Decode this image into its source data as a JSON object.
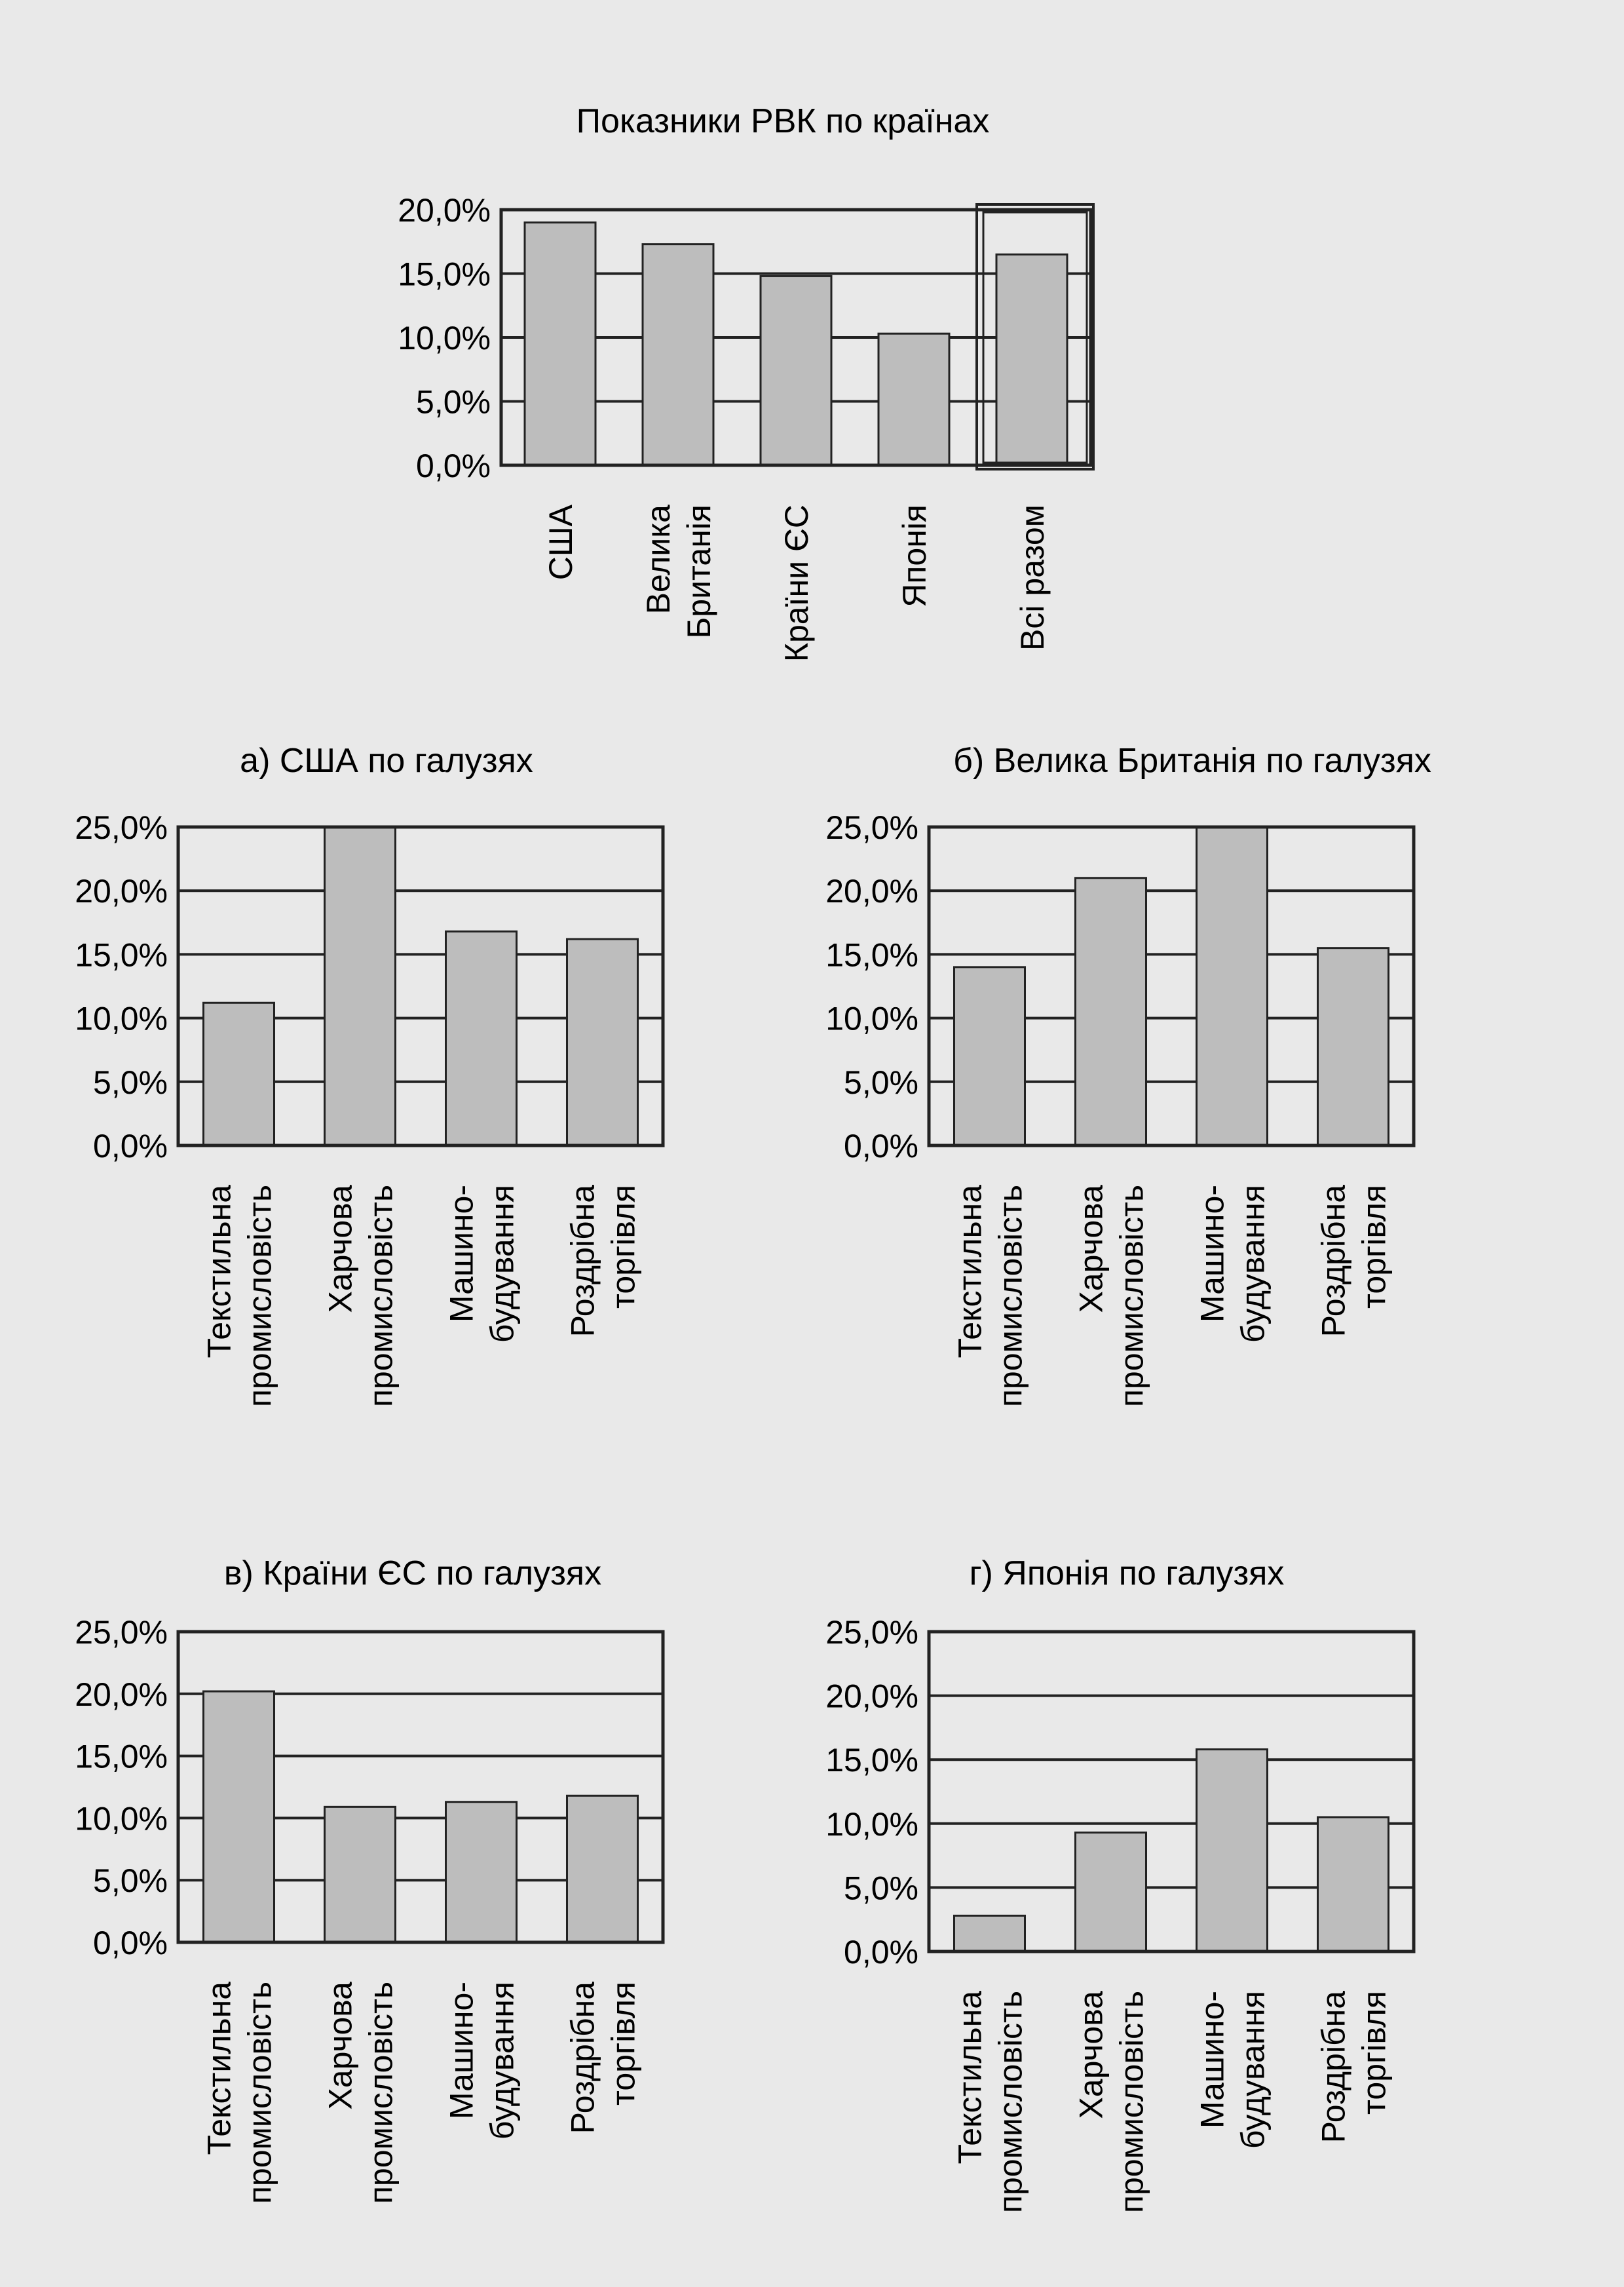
{
  "chart_data": [
    {
      "type": "bar",
      "title": "Показники РВК по країнах",
      "categories": [
        [
          "США"
        ],
        [
          "Велика",
          "Британія"
        ],
        [
          "Країни ЄС"
        ],
        [
          "Японія"
        ],
        [
          "Всі разом"
        ]
      ],
      "values": [
        19.0,
        17.3,
        14.8,
        10.3,
        16.5
      ],
      "ylim": [
        0,
        20
      ],
      "yticks": [
        "0,0%",
        "5,0%",
        "10,0%",
        "15,0%",
        "20,0%"
      ],
      "highlight_last": true,
      "grid": true,
      "bar_color": "#bdbdbd"
    },
    {
      "type": "bar",
      "title": "а) США по галузях",
      "categories": [
        [
          "Текстильна",
          "промисловість"
        ],
        [
          "Харчова",
          "промисловість"
        ],
        [
          "Машино-",
          "будування"
        ],
        [
          "Роздрібна",
          "торгівля"
        ]
      ],
      "values": [
        11.2,
        25.0,
        16.8,
        16.2
      ],
      "ylim": [
        0,
        25
      ],
      "yticks": [
        "0,0%",
        "5,0%",
        "10,0%",
        "15,0%",
        "20,0%",
        "25,0%"
      ],
      "grid": true,
      "bar_color": "#bdbdbd"
    },
    {
      "type": "bar",
      "title": "б) Велика Британія по галузях",
      "categories": [
        [
          "Текстильна",
          "промисловість"
        ],
        [
          "Харчова",
          "промисловість"
        ],
        [
          "Машино-",
          "будування"
        ],
        [
          "Роздрібна",
          "торгівля"
        ]
      ],
      "values": [
        14.0,
        21.0,
        25.0,
        15.5
      ],
      "ylim": [
        0,
        25
      ],
      "yticks": [
        "0,0%",
        "5,0%",
        "10,0%",
        "15,0%",
        "20,0%",
        "25,0%"
      ],
      "grid": true,
      "bar_color": "#bdbdbd"
    },
    {
      "type": "bar",
      "title": "в) Країни ЄС по галузях",
      "categories": [
        [
          "Текстильна",
          "промисловість"
        ],
        [
          "Харчова",
          "промисловість"
        ],
        [
          "Машино-",
          "будування"
        ],
        [
          "Роздрібна",
          "торгівля"
        ]
      ],
      "values": [
        20.2,
        10.9,
        11.3,
        11.8
      ],
      "ylim": [
        0,
        25
      ],
      "yticks": [
        "0,0%",
        "5,0%",
        "10,0%",
        "15,0%",
        "20,0%",
        "25,0%"
      ],
      "grid": true,
      "bar_color": "#bdbdbd"
    },
    {
      "type": "bar",
      "title": "г) Японія по галузях",
      "categories": [
        [
          "Текстильна",
          "промисловість"
        ],
        [
          "Харчова",
          "промисловість"
        ],
        [
          "Машино-",
          "будування"
        ],
        [
          "Роздрібна",
          "торгівля"
        ]
      ],
      "values": [
        2.8,
        9.3,
        15.8,
        10.5
      ],
      "ylim": [
        0,
        25
      ],
      "yticks": [
        "0,0%",
        "5,0%",
        "10,0%",
        "15,0%",
        "20,0%",
        "25,0%"
      ],
      "grid": true,
      "bar_color": "#bdbdbd"
    }
  ]
}
